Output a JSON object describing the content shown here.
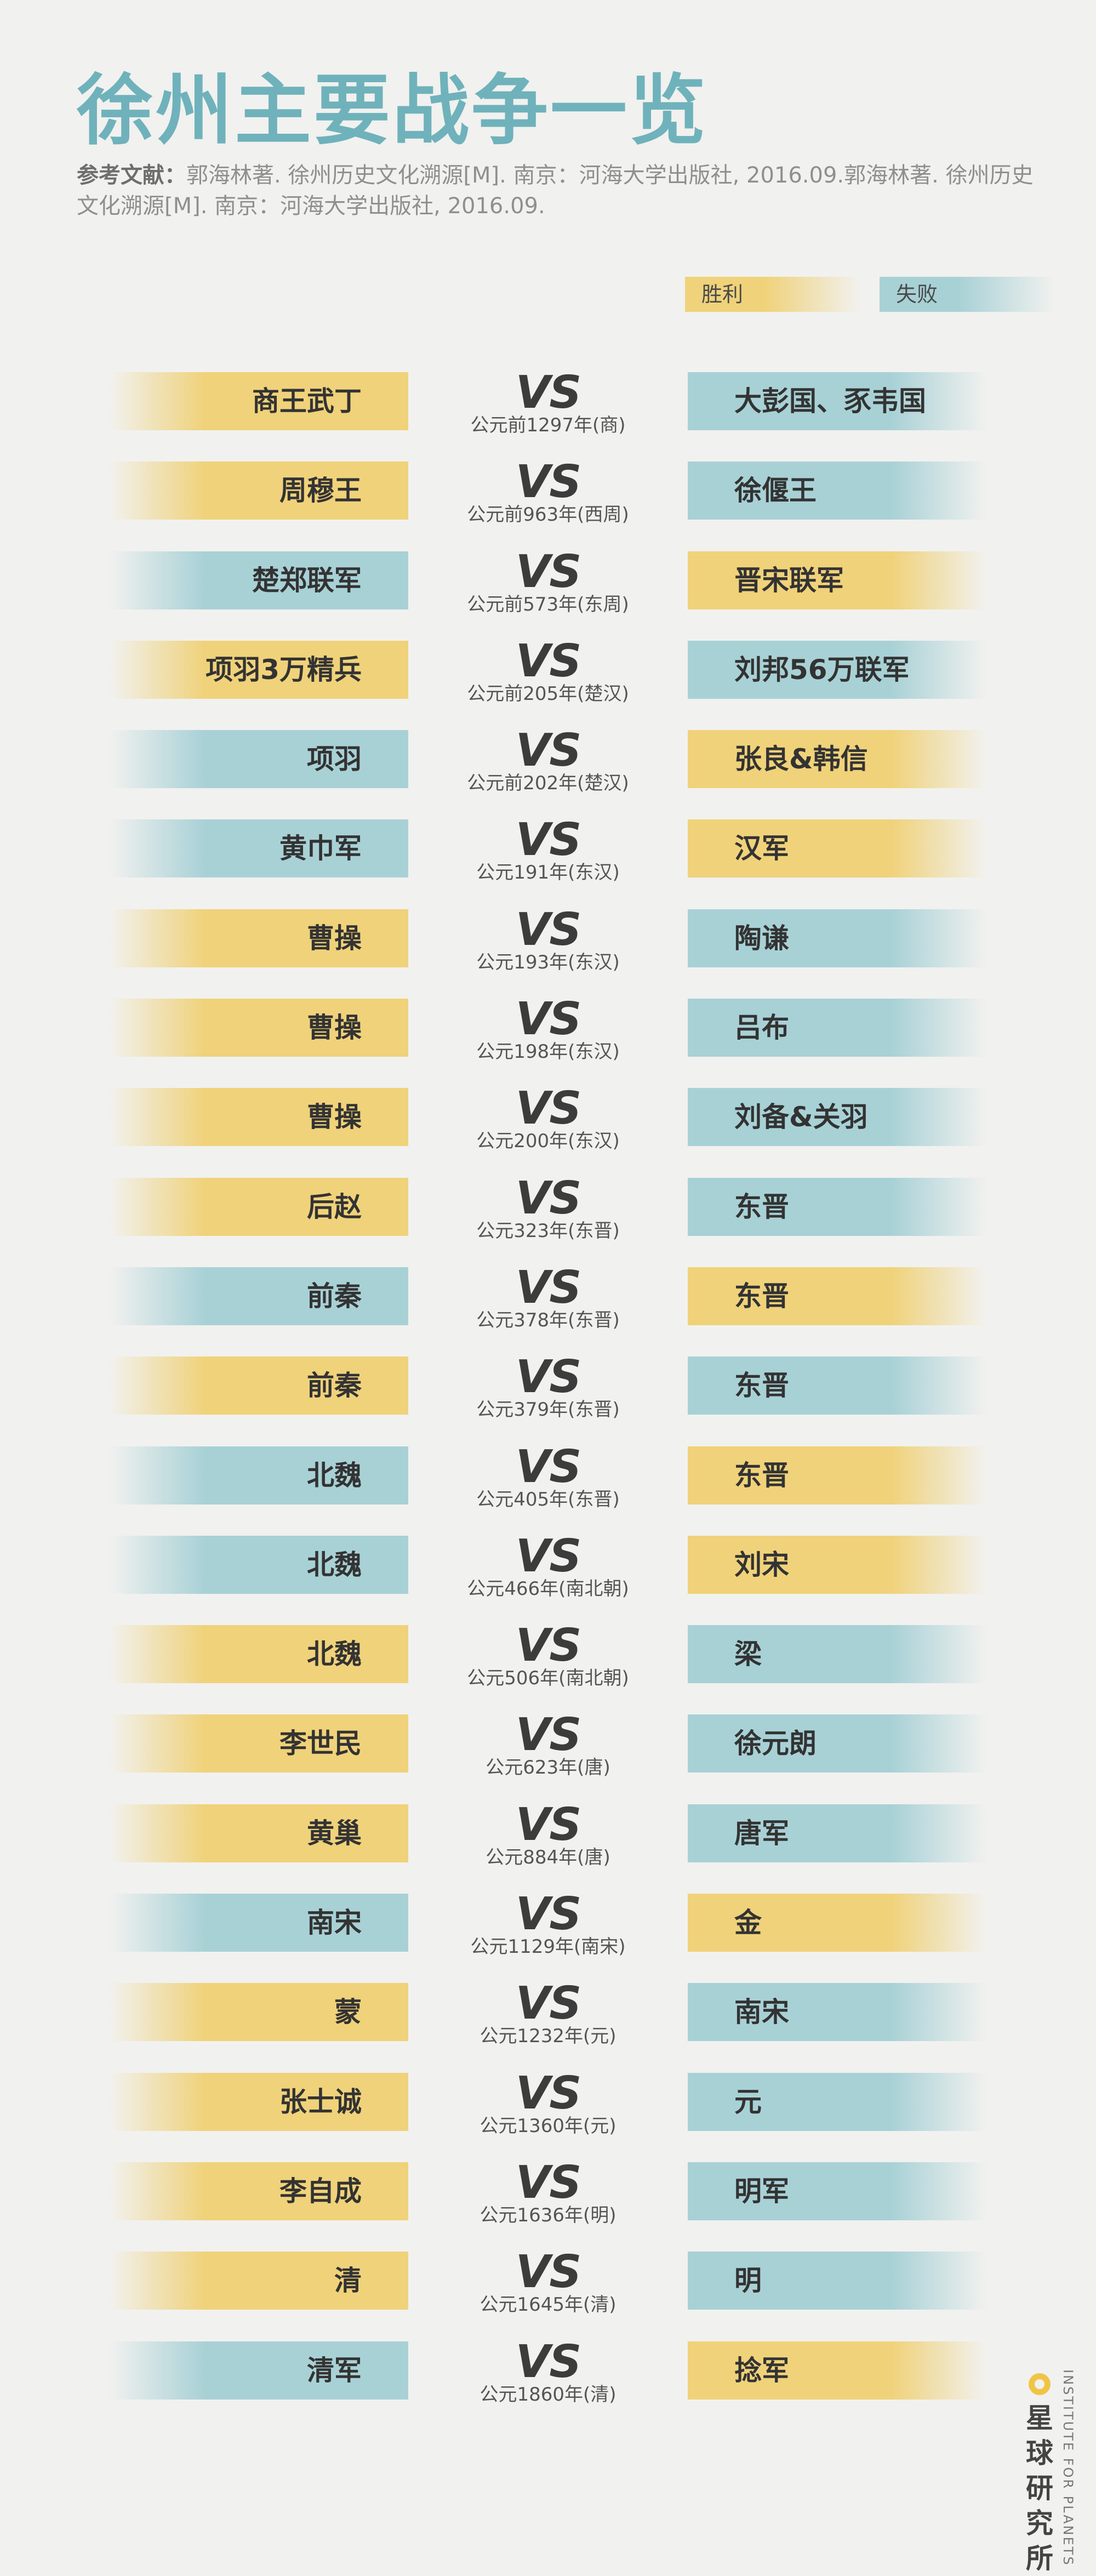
{
  "title": "徐州主要战争一览",
  "reference": {
    "label": "参考文献：",
    "text": "郭海林著. 徐州历史文化溯源[M]. 南京：河海大学出版社, 2016.09.郭海林著. 徐州历史文化溯源[M]. 南京：河海大学出版社, 2016.09."
  },
  "legend": {
    "win_label": "胜利",
    "lose_label": "失败",
    "colors": {
      "win": "#f0d27a",
      "lose": "#a8d1d6",
      "title": "#6fb2bb"
    }
  },
  "vs_text": "VS",
  "battles": [
    {
      "left": "商王武丁",
      "left_result": "win",
      "right": "大彭国、豕韦国",
      "right_result": "lose",
      "date": "公元前1297年(商)"
    },
    {
      "left": "周穆王",
      "left_result": "win",
      "right": "徐偃王",
      "right_result": "lose",
      "date": "公元前963年(西周)"
    },
    {
      "left": "楚郑联军",
      "left_result": "lose",
      "right": "晋宋联军",
      "right_result": "win",
      "date": "公元前573年(东周)"
    },
    {
      "left": "项羽3万精兵",
      "left_result": "win",
      "right": "刘邦56万联军",
      "right_result": "lose",
      "date": "公元前205年(楚汉)"
    },
    {
      "left": "项羽",
      "left_result": "lose",
      "right": "张良&韩信",
      "right_result": "win",
      "date": "公元前202年(楚汉)"
    },
    {
      "left": "黄巾军",
      "left_result": "lose",
      "right": "汉军",
      "right_result": "win",
      "date": "公元191年(东汉)"
    },
    {
      "left": "曹操",
      "left_result": "win",
      "right": "陶谦",
      "right_result": "lose",
      "date": "公元193年(东汉)"
    },
    {
      "left": "曹操",
      "left_result": "win",
      "right": "吕布",
      "right_result": "lose",
      "date": "公元198年(东汉)"
    },
    {
      "left": "曹操",
      "left_result": "win",
      "right": "刘备&关羽",
      "right_result": "lose",
      "date": "公元200年(东汉)"
    },
    {
      "left": "后赵",
      "left_result": "win",
      "right": "东晋",
      "right_result": "lose",
      "date": "公元323年(东晋)"
    },
    {
      "left": "前秦",
      "left_result": "lose",
      "right": "东晋",
      "right_result": "win",
      "date": "公元378年(东晋)"
    },
    {
      "left": "前秦",
      "left_result": "win",
      "right": "东晋",
      "right_result": "lose",
      "date": "公元379年(东晋)"
    },
    {
      "left": "北魏",
      "left_result": "lose",
      "right": "东晋",
      "right_result": "win",
      "date": "公元405年(东晋)"
    },
    {
      "left": "北魏",
      "left_result": "lose",
      "right": "刘宋",
      "right_result": "win",
      "date": "公元466年(南北朝)"
    },
    {
      "left": "北魏",
      "left_result": "win",
      "right": "梁",
      "right_result": "lose",
      "date": "公元506年(南北朝)"
    },
    {
      "left": "李世民",
      "left_result": "win",
      "right": "徐元朗",
      "right_result": "lose",
      "date": "公元623年(唐)"
    },
    {
      "left": "黄巢",
      "left_result": "win",
      "right": "唐军",
      "right_result": "lose",
      "date": "公元884年(唐)"
    },
    {
      "left": "南宋",
      "left_result": "lose",
      "right": "金",
      "right_result": "win",
      "date": "公元1129年(南宋)"
    },
    {
      "left": "蒙",
      "left_result": "win",
      "right": "南宋",
      "right_result": "lose",
      "date": "公元1232年(元)"
    },
    {
      "left": "张士诚",
      "left_result": "win",
      "right": "元",
      "right_result": "lose",
      "date": "公元1360年(元)"
    },
    {
      "left": "李自成",
      "left_result": "win",
      "right": "明军",
      "right_result": "lose",
      "date": "公元1636年(明)"
    },
    {
      "left": "清",
      "left_result": "win",
      "right": "明",
      "right_result": "lose",
      "date": "公元1645年(清)"
    },
    {
      "left": "清军",
      "left_result": "lose",
      "right": "捻军",
      "right_result": "win",
      "date": "公元1860年(清)"
    }
  ],
  "brand": {
    "logo_icon": "planet-ring-icon",
    "name": "星球研究所",
    "english": "INSTITUTE FOR PLANETS"
  }
}
